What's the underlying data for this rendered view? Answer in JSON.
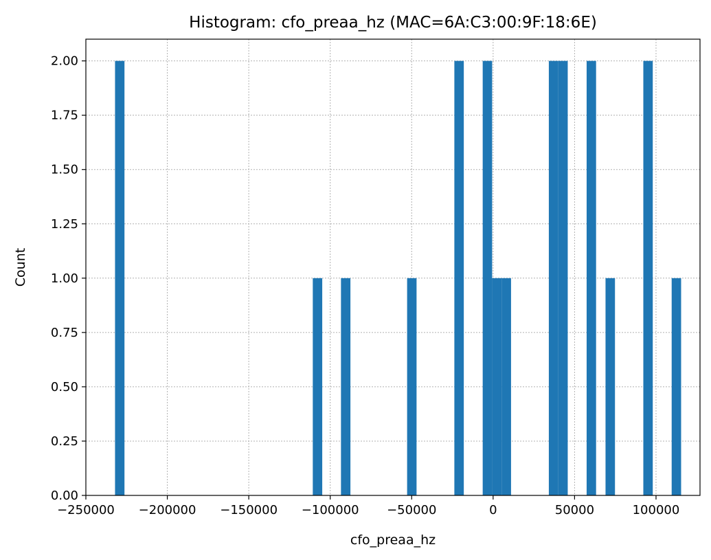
{
  "chart_data": {
    "type": "bar",
    "title": "Histogram: cfo_preaa_hz (MAC=6A:C3:00:9F:18:6E)",
    "xlabel": "cfo_preaa_hz",
    "ylabel": "Count",
    "xlim": [
      -250000,
      127000
    ],
    "ylim": [
      0,
      2.1
    ],
    "bin_width": 5800,
    "grid": true,
    "xticks": [
      -250000,
      -200000,
      -150000,
      -100000,
      -50000,
      0,
      50000,
      100000
    ],
    "xtick_labels": [
      "−250000",
      "−200000",
      "−150000",
      "−100000",
      "−50000",
      "0",
      "50000",
      "100000"
    ],
    "yticks": [
      0,
      0.25,
      0.5,
      0.75,
      1.0,
      1.25,
      1.5,
      1.75,
      2.0
    ],
    "ytick_labels": [
      "0.00",
      "0.25",
      "0.50",
      "0.75",
      "1.00",
      "1.25",
      "1.50",
      "1.75",
      "2.00"
    ],
    "bins": [
      {
        "x": -232100,
        "count": 2
      },
      {
        "x": -110700,
        "count": 1
      },
      {
        "x": -93400,
        "count": 1
      },
      {
        "x": -52800,
        "count": 1
      },
      {
        "x": -23800,
        "count": 2
      },
      {
        "x": -6400,
        "count": 2
      },
      {
        "x": -600,
        "count": 1
      },
      {
        "x": 5200,
        "count": 1
      },
      {
        "x": 34200,
        "count": 2
      },
      {
        "x": 40000,
        "count": 2
      },
      {
        "x": 57400,
        "count": 2
      },
      {
        "x": 69000,
        "count": 1
      },
      {
        "x": 92200,
        "count": 2
      },
      {
        "x": 109600,
        "count": 1
      }
    ]
  }
}
